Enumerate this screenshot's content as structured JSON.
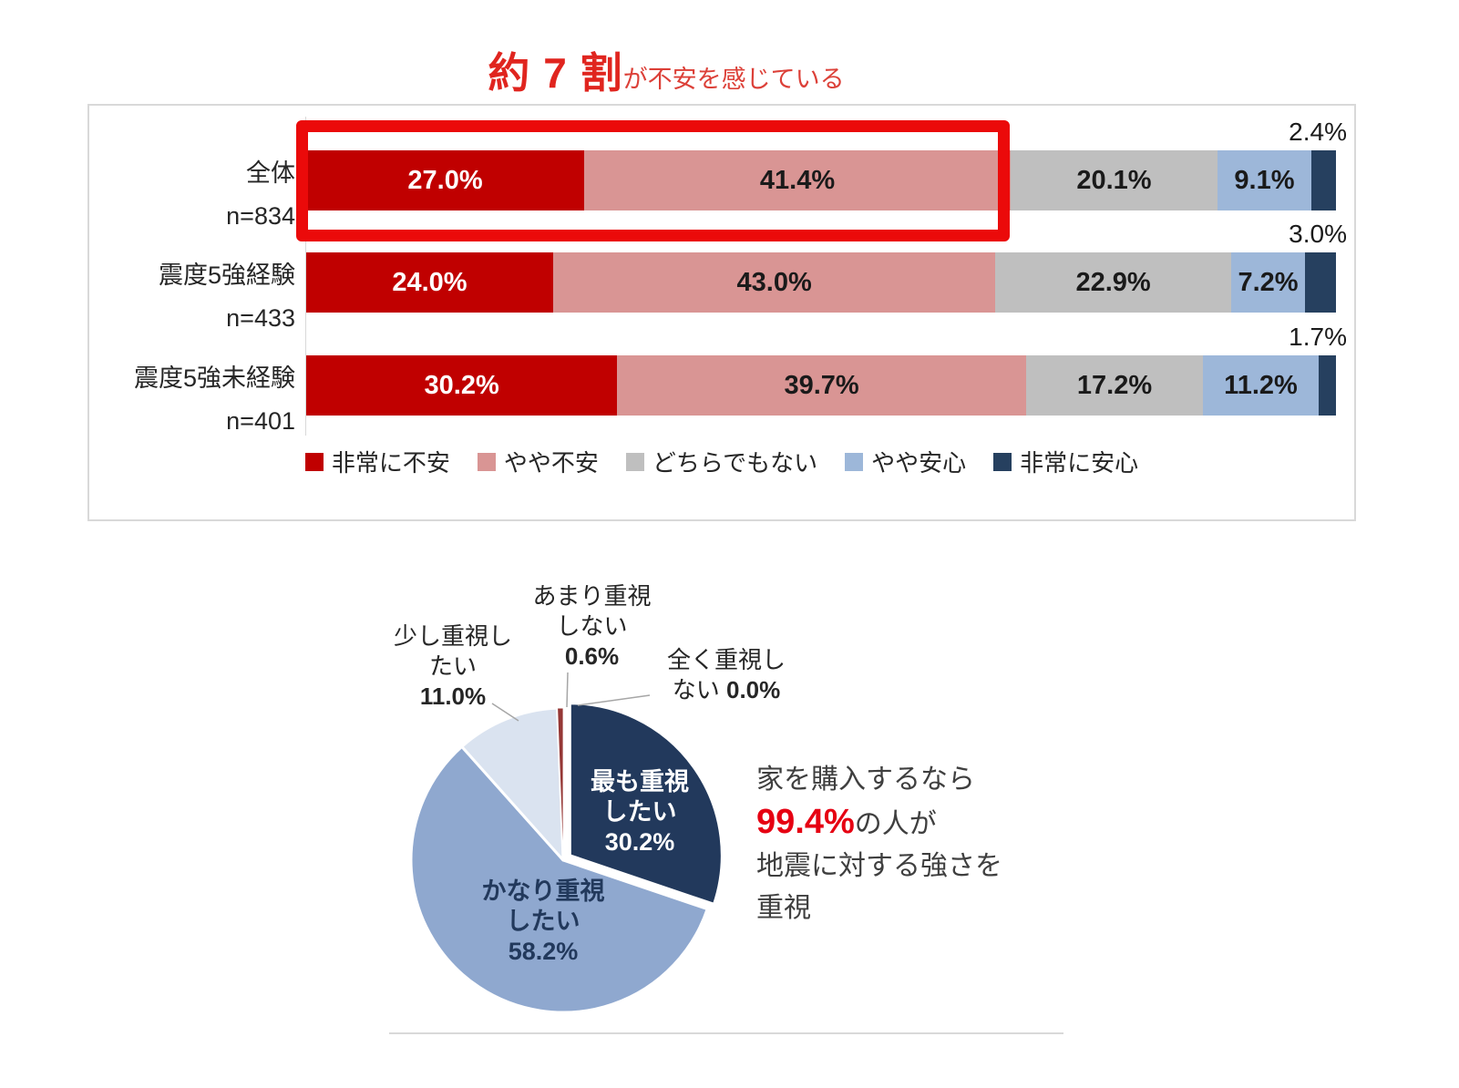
{
  "header": {
    "title_main": "約 7 割",
    "title_suffix": "が不安を感じている"
  },
  "chart_data": [
    {
      "type": "bar",
      "orientation": "horizontal_stacked",
      "title": "約 7 割が不安を感じている",
      "categories": [
        "全体",
        "震度5強経験",
        "震度5強未経験"
      ],
      "category_n": [
        "n=834",
        "n=433",
        "n=401"
      ],
      "series": [
        {
          "name": "非常に不安",
          "color": "#C00000",
          "text_color": "#FFFFFF",
          "values": [
            27.0,
            24.0,
            30.2
          ]
        },
        {
          "name": "やや不安",
          "color": "#D99594",
          "text_color": "#1A1A1A",
          "values": [
            41.4,
            43.0,
            39.7
          ]
        },
        {
          "name": "どちらでもない",
          "color": "#BFBFBF",
          "text_color": "#1A1A1A",
          "values": [
            20.1,
            22.9,
            17.2
          ]
        },
        {
          "name": "やや安心",
          "color": "#9DB7D9",
          "text_color": "#1A1A1A",
          "values": [
            9.1,
            7.2,
            11.2
          ]
        },
        {
          "name": "非常に安心",
          "color": "#26405F",
          "text_color": "#1A1A1A",
          "values": [
            2.4,
            3.0,
            1.7
          ],
          "label_outside": true
        }
      ],
      "xlim": [
        0,
        100
      ],
      "legend_position": "bottom",
      "annotation": "全体の「非常に不安」+「やや不安」(約7割) を赤枠で強調"
    },
    {
      "type": "pie",
      "start_angle_deg": 0,
      "direction": "clockwise",
      "slices": [
        {
          "label": "最も重視したい",
          "value": 30.2,
          "color": "#22395C",
          "display": [
            "最も重視",
            "したい",
            "30.2%"
          ],
          "label_pos": "inside",
          "text_color": "#FFFFFF",
          "exploded": true
        },
        {
          "label": "かなり重視したい",
          "value": 58.2,
          "color": "#8FA8CF",
          "display": [
            "かなり重視",
            "したい",
            "58.2%"
          ],
          "label_pos": "inside",
          "text_color": "#22395C"
        },
        {
          "label": "少し重視したい",
          "value": 11.0,
          "color": "#DAE3F0",
          "display": [
            "少し重視し",
            "たい",
            "11.0%"
          ],
          "label_pos": "outside"
        },
        {
          "label": "あまり重視しない",
          "value": 0.6,
          "color": "#953735",
          "display": [
            "あまり重視",
            "しない",
            "0.6%"
          ],
          "label_pos": "outside"
        },
        {
          "label": "全く重視しない",
          "value": 0.0,
          "display": [
            "全く重視し",
            "ない 0.0%"
          ],
          "label_pos": "outside"
        }
      ]
    }
  ],
  "pie_annotation": {
    "line1": "家を購入するなら",
    "highlight": "99.4%",
    "line2_rest": "の人が",
    "line3": "地震に対する強さを",
    "line4": "重視"
  },
  "colors": {
    "title_red": "#E0251F",
    "highlight_box_red": "#EB0A0A",
    "annotation_red": "#E60012",
    "panel_border": "#D9D9D9",
    "leader_line": "#A6A6A6",
    "text_dark": "#262626"
  }
}
